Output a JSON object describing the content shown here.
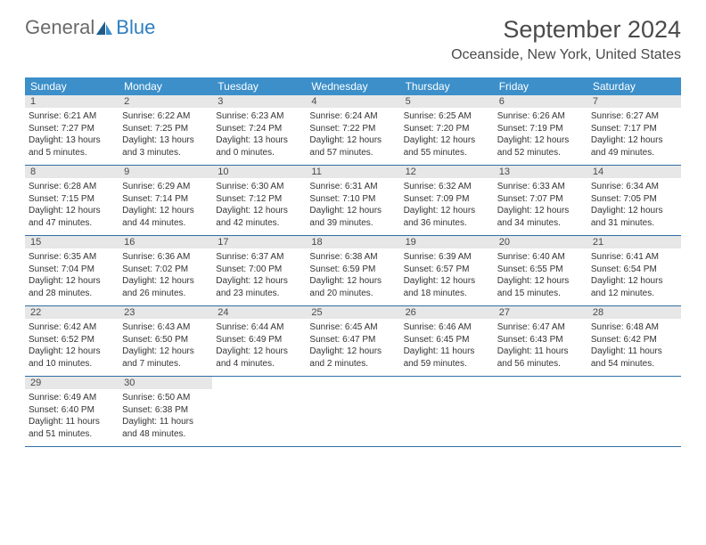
{
  "brand": {
    "word1": "General",
    "word2": "Blue"
  },
  "title": "September 2024",
  "location": "Oceanside, New York, United States",
  "colors": {
    "header_bg": "#3c8fc9",
    "header_text": "#ffffff",
    "day_head_bg": "#e7e7e7",
    "row_border": "#2f6fa5",
    "brand_gray": "#6a6a6a",
    "brand_blue": "#2f7fbf"
  },
  "day_names": [
    "Sunday",
    "Monday",
    "Tuesday",
    "Wednesday",
    "Thursday",
    "Friday",
    "Saturday"
  ],
  "weeks": [
    [
      {
        "n": "1",
        "sr": "Sunrise: 6:21 AM",
        "ss": "Sunset: 7:27 PM",
        "dl": "Daylight: 13 hours and 5 minutes."
      },
      {
        "n": "2",
        "sr": "Sunrise: 6:22 AM",
        "ss": "Sunset: 7:25 PM",
        "dl": "Daylight: 13 hours and 3 minutes."
      },
      {
        "n": "3",
        "sr": "Sunrise: 6:23 AM",
        "ss": "Sunset: 7:24 PM",
        "dl": "Daylight: 13 hours and 0 minutes."
      },
      {
        "n": "4",
        "sr": "Sunrise: 6:24 AM",
        "ss": "Sunset: 7:22 PM",
        "dl": "Daylight: 12 hours and 57 minutes."
      },
      {
        "n": "5",
        "sr": "Sunrise: 6:25 AM",
        "ss": "Sunset: 7:20 PM",
        "dl": "Daylight: 12 hours and 55 minutes."
      },
      {
        "n": "6",
        "sr": "Sunrise: 6:26 AM",
        "ss": "Sunset: 7:19 PM",
        "dl": "Daylight: 12 hours and 52 minutes."
      },
      {
        "n": "7",
        "sr": "Sunrise: 6:27 AM",
        "ss": "Sunset: 7:17 PM",
        "dl": "Daylight: 12 hours and 49 minutes."
      }
    ],
    [
      {
        "n": "8",
        "sr": "Sunrise: 6:28 AM",
        "ss": "Sunset: 7:15 PM",
        "dl": "Daylight: 12 hours and 47 minutes."
      },
      {
        "n": "9",
        "sr": "Sunrise: 6:29 AM",
        "ss": "Sunset: 7:14 PM",
        "dl": "Daylight: 12 hours and 44 minutes."
      },
      {
        "n": "10",
        "sr": "Sunrise: 6:30 AM",
        "ss": "Sunset: 7:12 PM",
        "dl": "Daylight: 12 hours and 42 minutes."
      },
      {
        "n": "11",
        "sr": "Sunrise: 6:31 AM",
        "ss": "Sunset: 7:10 PM",
        "dl": "Daylight: 12 hours and 39 minutes."
      },
      {
        "n": "12",
        "sr": "Sunrise: 6:32 AM",
        "ss": "Sunset: 7:09 PM",
        "dl": "Daylight: 12 hours and 36 minutes."
      },
      {
        "n": "13",
        "sr": "Sunrise: 6:33 AM",
        "ss": "Sunset: 7:07 PM",
        "dl": "Daylight: 12 hours and 34 minutes."
      },
      {
        "n": "14",
        "sr": "Sunrise: 6:34 AM",
        "ss": "Sunset: 7:05 PM",
        "dl": "Daylight: 12 hours and 31 minutes."
      }
    ],
    [
      {
        "n": "15",
        "sr": "Sunrise: 6:35 AM",
        "ss": "Sunset: 7:04 PM",
        "dl": "Daylight: 12 hours and 28 minutes."
      },
      {
        "n": "16",
        "sr": "Sunrise: 6:36 AM",
        "ss": "Sunset: 7:02 PM",
        "dl": "Daylight: 12 hours and 26 minutes."
      },
      {
        "n": "17",
        "sr": "Sunrise: 6:37 AM",
        "ss": "Sunset: 7:00 PM",
        "dl": "Daylight: 12 hours and 23 minutes."
      },
      {
        "n": "18",
        "sr": "Sunrise: 6:38 AM",
        "ss": "Sunset: 6:59 PM",
        "dl": "Daylight: 12 hours and 20 minutes."
      },
      {
        "n": "19",
        "sr": "Sunrise: 6:39 AM",
        "ss": "Sunset: 6:57 PM",
        "dl": "Daylight: 12 hours and 18 minutes."
      },
      {
        "n": "20",
        "sr": "Sunrise: 6:40 AM",
        "ss": "Sunset: 6:55 PM",
        "dl": "Daylight: 12 hours and 15 minutes."
      },
      {
        "n": "21",
        "sr": "Sunrise: 6:41 AM",
        "ss": "Sunset: 6:54 PM",
        "dl": "Daylight: 12 hours and 12 minutes."
      }
    ],
    [
      {
        "n": "22",
        "sr": "Sunrise: 6:42 AM",
        "ss": "Sunset: 6:52 PM",
        "dl": "Daylight: 12 hours and 10 minutes."
      },
      {
        "n": "23",
        "sr": "Sunrise: 6:43 AM",
        "ss": "Sunset: 6:50 PM",
        "dl": "Daylight: 12 hours and 7 minutes."
      },
      {
        "n": "24",
        "sr": "Sunrise: 6:44 AM",
        "ss": "Sunset: 6:49 PM",
        "dl": "Daylight: 12 hours and 4 minutes."
      },
      {
        "n": "25",
        "sr": "Sunrise: 6:45 AM",
        "ss": "Sunset: 6:47 PM",
        "dl": "Daylight: 12 hours and 2 minutes."
      },
      {
        "n": "26",
        "sr": "Sunrise: 6:46 AM",
        "ss": "Sunset: 6:45 PM",
        "dl": "Daylight: 11 hours and 59 minutes."
      },
      {
        "n": "27",
        "sr": "Sunrise: 6:47 AM",
        "ss": "Sunset: 6:43 PM",
        "dl": "Daylight: 11 hours and 56 minutes."
      },
      {
        "n": "28",
        "sr": "Sunrise: 6:48 AM",
        "ss": "Sunset: 6:42 PM",
        "dl": "Daylight: 11 hours and 54 minutes."
      }
    ],
    [
      {
        "n": "29",
        "sr": "Sunrise: 6:49 AM",
        "ss": "Sunset: 6:40 PM",
        "dl": "Daylight: 11 hours and 51 minutes."
      },
      {
        "n": "30",
        "sr": "Sunrise: 6:50 AM",
        "ss": "Sunset: 6:38 PM",
        "dl": "Daylight: 11 hours and 48 minutes."
      },
      null,
      null,
      null,
      null,
      null
    ]
  ]
}
